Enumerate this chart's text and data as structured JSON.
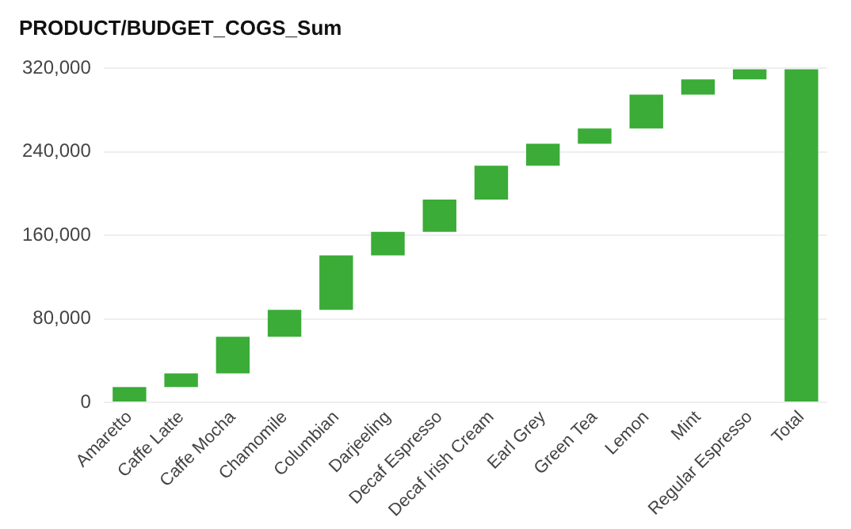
{
  "chart_data": {
    "type": "bar",
    "title": "PRODUCT/BUDGET_COGS_Sum",
    "categories": [
      "Amaretto",
      "Caffe Latte",
      "Caffe Mocha",
      "Chamomile",
      "Columbian",
      "Darjeeling",
      "Decaf Espresso",
      "Decaf Irish Cream",
      "Earl Grey",
      "Green Tea",
      "Lemon",
      "Mint",
      "Regular Espresso",
      "Total"
    ],
    "values": [
      14600,
      13000,
      35200,
      25900,
      52000,
      22700,
      30900,
      32400,
      21100,
      14600,
      32500,
      14600,
      9700,
      319200
    ],
    "base": [
      0,
      14600,
      27600,
      62800,
      88700,
      140700,
      163400,
      194300,
      226700,
      247800,
      262400,
      294900,
      309500,
      0
    ],
    "color": "#3aac37",
    "ylim": [
      0,
      320000
    ],
    "yticks": [
      {
        "value": 0,
        "label": "0"
      },
      {
        "value": 80000,
        "label": "80,000"
      },
      {
        "value": 160000,
        "label": "160,000"
      },
      {
        "value": 240000,
        "label": "240,000"
      },
      {
        "value": 320000,
        "label": "320,000"
      }
    ],
    "grid": "y",
    "legend": false
  }
}
